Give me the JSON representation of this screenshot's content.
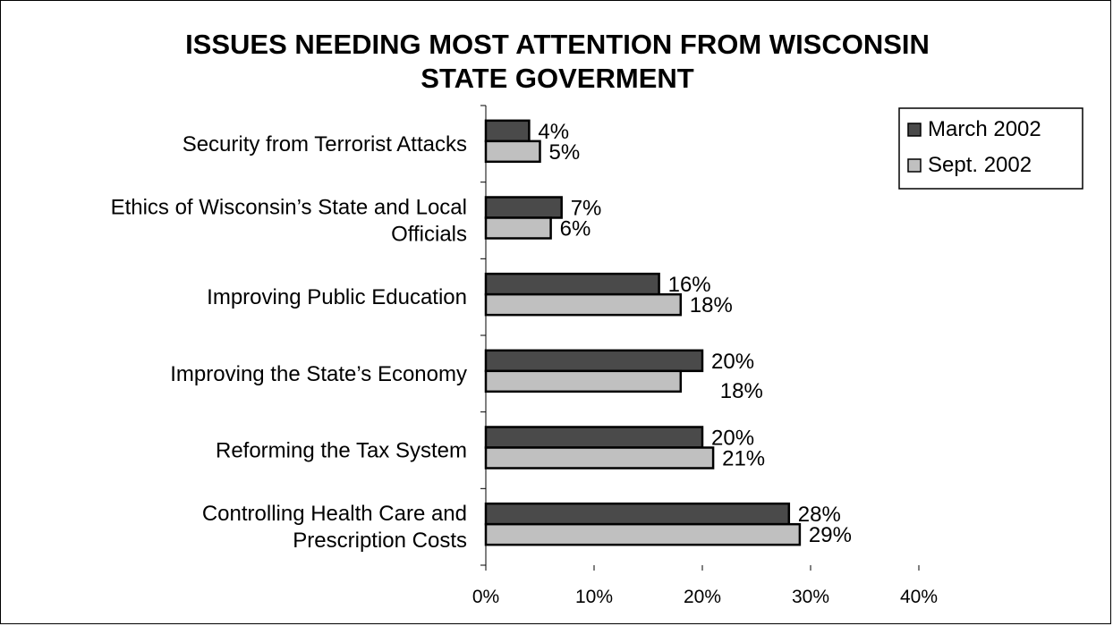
{
  "chart_data": {
    "type": "bar",
    "orientation": "horizontal",
    "title_lines": [
      "ISSUES NEEDING MOST ATTENTION FROM WISCONSIN",
      "STATE GOVERMENT"
    ],
    "categories": [
      [
        "Security from Terrorist Attacks"
      ],
      [
        "Ethics of Wisconsin’s State and Local",
        "Officials"
      ],
      [
        "Improving Public Education"
      ],
      [
        "Improving the State’s Economy"
      ],
      [
        "Reforming the Tax System"
      ],
      [
        "Controlling Health Care and",
        "Prescription Costs"
      ]
    ],
    "series": [
      {
        "name": "March 2002",
        "values": [
          4,
          7,
          16,
          20,
          20,
          28
        ],
        "color": "#4a4a4a"
      },
      {
        "name": "Sept. 2002",
        "values": [
          5,
          6,
          18,
          18,
          21,
          29
        ],
        "color": "#c0c0c0"
      }
    ],
    "xlim": [
      0,
      40
    ],
    "xticks": [
      "0%",
      "10%",
      "20%",
      "30%",
      "40%"
    ],
    "value_suffix": "%",
    "legend_position": "top-right",
    "grid": false
  }
}
